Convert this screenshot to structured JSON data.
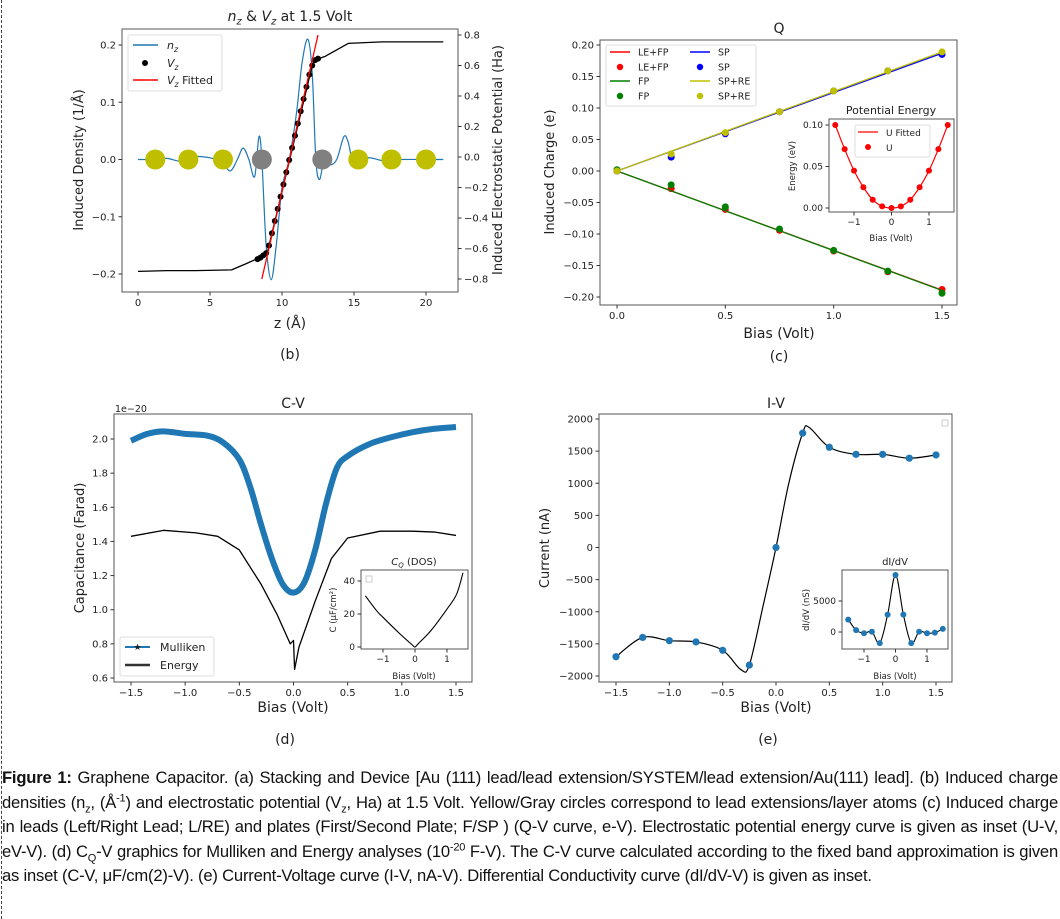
{
  "panel_labels": {
    "b": "(b)",
    "c": "(c)",
    "d": "(d)",
    "e": "(e)"
  },
  "chart_data": [
    {
      "panel": "b",
      "type": "line",
      "title_parts": [
        "n",
        "z",
        " & ",
        "V",
        "z",
        " at 1.5 Volt"
      ],
      "xlabel": "z (Å)",
      "ylabel": "Induced Density (1/Å)",
      "ylabel_right": "Induced Electrostatic Potential (Ha)",
      "xticks": [
        "0",
        "5",
        "10",
        "15",
        "20"
      ],
      "yticks": [
        "−0.2",
        "−0.1",
        "0.0",
        "0.1",
        "0.2"
      ],
      "yticks_right": [
        "−0.8",
        "−0.6",
        "−0.4",
        "−0.2",
        "0.0",
        "0.2",
        "0.4",
        "0.6",
        "0.8"
      ],
      "legend": [
        {
          "main": "n",
          "sub": "z",
          "rest": "",
          "color": "#1f77b4",
          "kind": "line"
        },
        {
          "main": "V",
          "sub": "z",
          "rest": "",
          "color": "#000000",
          "kind": "marker"
        },
        {
          "main": "V",
          "sub": "z",
          "rest": " Fitted",
          "color": "#ff0000",
          "kind": "line"
        }
      ],
      "n_z": [
        [
          0,
          0
        ],
        [
          1,
          0
        ],
        [
          2,
          0.002
        ],
        [
          3,
          -0.003
        ],
        [
          4,
          0.005
        ],
        [
          5,
          0.003
        ],
        [
          5.8,
          -0.004
        ],
        [
          6.4,
          -0.02
        ],
        [
          6.9,
          0
        ],
        [
          7.3,
          0.02
        ],
        [
          7.7,
          0
        ],
        [
          8.1,
          -0.03
        ],
        [
          8.4,
          0.04
        ],
        [
          8.6,
          0
        ],
        [
          8.9,
          -0.15
        ],
        [
          9.25,
          -0.21
        ],
        [
          9.6,
          -0.15
        ],
        [
          10.0,
          -0.05
        ],
        [
          10.5,
          0
        ],
        [
          11.0,
          0.08
        ],
        [
          11.4,
          0.17
        ],
        [
          11.8,
          0.21
        ],
        [
          12.1,
          0.15
        ],
        [
          12.35,
          0
        ],
        [
          12.6,
          -0.035
        ],
        [
          12.9,
          -0.005
        ],
        [
          13.3,
          -0.01
        ],
        [
          13.8,
          0
        ],
        [
          14.3,
          0.04
        ],
        [
          14.6,
          0.03
        ],
        [
          15.0,
          -0.005
        ],
        [
          16,
          0.003
        ],
        [
          17,
          -0.002
        ],
        [
          18,
          0
        ],
        [
          21.2,
          0
        ]
      ],
      "V_z_line": [
        [
          0,
          -0.75
        ],
        [
          2,
          -0.745
        ],
        [
          4,
          -0.745
        ],
        [
          6.5,
          -0.74
        ],
        [
          7.5,
          -0.7
        ],
        [
          8.2,
          -0.67
        ],
        [
          8.5,
          -0.66
        ],
        [
          9.0,
          -0.62
        ],
        [
          12.1,
          0.6
        ],
        [
          12.4,
          0.64
        ],
        [
          13,
          0.66
        ],
        [
          14.6,
          0.745
        ],
        [
          17,
          0.755
        ],
        [
          21.2,
          0.755
        ]
      ],
      "V_z_points": [
        [
          8.3,
          -0.67
        ],
        [
          8.5,
          -0.66
        ],
        [
          8.7,
          -0.645
        ],
        [
          8.9,
          -0.63
        ],
        [
          9.1,
          -0.58
        ],
        [
          9.3,
          -0.5
        ],
        [
          9.5,
          -0.42
        ],
        [
          9.7,
          -0.34
        ],
        [
          9.9,
          -0.26
        ],
        [
          10.1,
          -0.18
        ],
        [
          10.3,
          -0.1
        ],
        [
          10.5,
          -0.02
        ],
        [
          10.7,
          0.06
        ],
        [
          10.9,
          0.14
        ],
        [
          11.1,
          0.22
        ],
        [
          11.3,
          0.3
        ],
        [
          11.5,
          0.38
        ],
        [
          11.7,
          0.46
        ],
        [
          11.9,
          0.54
        ],
        [
          12.1,
          0.6
        ],
        [
          12.3,
          0.635
        ],
        [
          12.5,
          0.645
        ]
      ],
      "V_z_fitted": [
        [
          8.6,
          -0.8
        ],
        [
          12.5,
          0.8
        ]
      ],
      "atoms": [
        {
          "z": 1.2,
          "color": "#bfbf00"
        },
        {
          "z": 3.5,
          "color": "#bfbf00"
        },
        {
          "z": 5.9,
          "color": "#bfbf00"
        },
        {
          "z": 8.6,
          "color": "#808080"
        },
        {
          "z": 12.8,
          "color": "#808080"
        },
        {
          "z": 15.3,
          "color": "#bfbf00"
        },
        {
          "z": 17.6,
          "color": "#bfbf00"
        },
        {
          "z": 20.0,
          "color": "#bfbf00"
        }
      ]
    },
    {
      "panel": "c",
      "type": "line",
      "title": "Q",
      "xlabel": "Bias (Volt)",
      "ylabel": "Induced Charge (e)",
      "xticks": [
        "0.0",
        "0.5",
        "1.0",
        "1.5"
      ],
      "yticks": [
        "−0.20",
        "−0.15",
        "−0.10",
        "−0.05",
        "0.00",
        "0.05",
        "0.10",
        "0.15",
        "0.20"
      ],
      "x": [
        0,
        0.25,
        0.5,
        0.75,
        1.0,
        1.25,
        1.5
      ],
      "series": [
        {
          "name": "LE+FP",
          "color": "#ff0000",
          "values": [
            0,
            -0.028,
            -0.061,
            -0.094,
            -0.127,
            -0.16,
            -0.188
          ]
        },
        {
          "name": "FP",
          "color": "#008000",
          "values": [
            0.002,
            -0.022,
            -0.057,
            -0.092,
            -0.126,
            -0.159,
            -0.194
          ]
        },
        {
          "name": "SP",
          "color": "#0000ff",
          "values": [
            0,
            0.022,
            0.059,
            0.094,
            0.127,
            0.159,
            0.185
          ]
        },
        {
          "name": "SP+RE",
          "color": "#bfbf00",
          "values": [
            0,
            0.027,
            0.061,
            0.094,
            0.127,
            0.159,
            0.189
          ]
        }
      ],
      "legend": [
        "LE+FP",
        "LE+FP",
        "FP",
        "FP",
        "SP",
        "SP",
        "SP+RE",
        "SP+RE"
      ],
      "inset": {
        "title": "Potential Energy",
        "xlabel": "Bias (Volt)",
        "ylabel": "Energy (eV)",
        "xticks": [
          "−1",
          "0",
          "1"
        ],
        "yticks": [
          "0.00",
          "0.05",
          "0.10"
        ],
        "x": [
          -1.5,
          -1.25,
          -1.0,
          -0.75,
          -0.5,
          -0.25,
          0,
          0.25,
          0.5,
          0.75,
          1.0,
          1.25,
          1.5
        ],
        "U": [
          0.1,
          0.071,
          0.045,
          0.025,
          0.01,
          0.002,
          0,
          0.002,
          0.01,
          0.025,
          0.045,
          0.071,
          0.1
        ],
        "legend": [
          "U Fitted",
          "U"
        ],
        "color": "#ff0000"
      }
    },
    {
      "panel": "d",
      "type": "line",
      "title": "C-V",
      "offset_text": "1e−20",
      "xlabel": "Bias (Volt)",
      "ylabel": "Capacitance (Farad)",
      "xticks": [
        "−1.5",
        "−1.0",
        "−0.5",
        "0.0",
        "0.5",
        "1.0",
        "1.5"
      ],
      "yticks": [
        "0.6",
        "0.8",
        "1.0",
        "1.2",
        "1.4",
        "1.6",
        "1.8",
        "2.0"
      ],
      "series": [
        {
          "name": "Mulliken",
          "color": "#1f77b4",
          "points": [
            [
              -1.5,
              1.99
            ],
            [
              -1.35,
              2.03
            ],
            [
              -1.2,
              2.045
            ],
            [
              -1.0,
              2.03
            ],
            [
              -0.8,
              2.02
            ],
            [
              -0.65,
              1.98
            ],
            [
              -0.5,
              1.88
            ],
            [
              -0.4,
              1.72
            ],
            [
              -0.3,
              1.5
            ],
            [
              -0.2,
              1.3
            ],
            [
              -0.1,
              1.15
            ],
            [
              0,
              1.1
            ],
            [
              0.1,
              1.16
            ],
            [
              0.2,
              1.35
            ],
            [
              0.3,
              1.62
            ],
            [
              0.4,
              1.83
            ],
            [
              0.5,
              1.9
            ],
            [
              0.7,
              1.97
            ],
            [
              0.9,
              2.01
            ],
            [
              1.1,
              2.04
            ],
            [
              1.3,
              2.06
            ],
            [
              1.5,
              2.07
            ]
          ]
        },
        {
          "name": "Energy",
          "color": "#000000",
          "points": [
            [
              -1.5,
              1.43
            ],
            [
              -1.2,
              1.465
            ],
            [
              -0.9,
              1.45
            ],
            [
              -0.7,
              1.43
            ],
            [
              -0.5,
              1.35
            ],
            [
              -0.3,
              1.15
            ],
            [
              -0.15,
              0.97
            ],
            [
              -0.03,
              0.8
            ],
            [
              0,
              0.82
            ],
            [
              0.01,
              0.65
            ],
            [
              0.05,
              0.78
            ],
            [
              0.2,
              1.05
            ],
            [
              0.35,
              1.3
            ],
            [
              0.5,
              1.42
            ],
            [
              0.8,
              1.46
            ],
            [
              1.1,
              1.46
            ],
            [
              1.3,
              1.455
            ],
            [
              1.5,
              1.435
            ]
          ]
        }
      ],
      "inset": {
        "title_main": "C",
        "title_sub": "Q",
        "title_rest": " (DOS)",
        "xlabel": "Bias (Volt)",
        "ylabel": "C (μF/cm²)",
        "xticks": [
          "−1",
          "0",
          "1"
        ],
        "yticks": [
          "0",
          "20",
          "40"
        ],
        "points": [
          [
            -1.55,
            31
          ],
          [
            -1.2,
            22
          ],
          [
            -1,
            18
          ],
          [
            -0.5,
            8.5
          ],
          [
            -0.1,
            1.5
          ],
          [
            0,
            0
          ],
          [
            0.1,
            2
          ],
          [
            0.5,
            10
          ],
          [
            1,
            23
          ],
          [
            1.3,
            32
          ],
          [
            1.5,
            45
          ]
        ]
      }
    },
    {
      "panel": "e",
      "type": "line",
      "title": "I-V",
      "xlabel": "Bias (Volt)",
      "ylabel": "Current (nA)",
      "xticks": [
        "−1.5",
        "−1.0",
        "−0.5",
        "0.0",
        "0.5",
        "1.0",
        "1.5"
      ],
      "yticks": [
        "−2000",
        "−1500",
        "−1000",
        "−500",
        "0",
        "500",
        "1000",
        "1500",
        "2000"
      ],
      "x": [
        -1.5,
        -1.25,
        -1.0,
        -0.75,
        -0.5,
        -0.25,
        0,
        0.25,
        0.5,
        0.75,
        1.0,
        1.25,
        1.5
      ],
      "I": [
        -1700,
        -1400,
        -1450,
        -1470,
        -1600,
        -1830,
        0,
        1780,
        1560,
        1450,
        1450,
        1390,
        1440
      ],
      "curve": [
        [
          -1.5,
          -1700
        ],
        [
          -1.25,
          -1400
        ],
        [
          -1.0,
          -1450
        ],
        [
          -0.75,
          -1470
        ],
        [
          -0.5,
          -1600
        ],
        [
          -0.33,
          -1900
        ],
        [
          -0.25,
          -1830
        ],
        [
          -0.12,
          -900
        ],
        [
          0,
          0
        ],
        [
          0.12,
          1000
        ],
        [
          0.25,
          1780
        ],
        [
          0.31,
          1870
        ],
        [
          0.5,
          1560
        ],
        [
          0.75,
          1450
        ],
        [
          1.0,
          1450
        ],
        [
          1.25,
          1390
        ],
        [
          1.5,
          1440
        ]
      ],
      "color": "#1f77b4",
      "inset": {
        "title": "dI/dV",
        "xlabel": "Bias (Volt)",
        "ylabel": "dI/dV (nS)",
        "xticks": [
          "−1",
          "0",
          "1"
        ],
        "yticks": [
          "0",
          "5000"
        ],
        "x": [
          -1.5,
          -1.25,
          -1.0,
          -0.75,
          -0.5,
          -0.25,
          0,
          0.25,
          0.5,
          0.75,
          1.0,
          1.25,
          1.5
        ],
        "values": [
          2000,
          300,
          -200,
          50,
          -1800,
          2800,
          9200,
          2800,
          -1800,
          50,
          -200,
          -100,
          500
        ]
      }
    }
  ],
  "caption": [
    {
      "t": "Figure 1:",
      "s": "b"
    },
    {
      "t": " Graphene Capacitor. (a) Stacking and Device [Au (111) lead/lead extension/SYSTEM/lead extension/Au(111) lead]. (b) Induced charge densities (n",
      "s": ""
    },
    {
      "t": "z",
      "s": "sub"
    },
    {
      "t": ", (Å",
      "s": ""
    },
    {
      "t": "-1",
      "s": "sup"
    },
    {
      "t": ") and electrostatic potential (V",
      "s": ""
    },
    {
      "t": "z",
      "s": "sub"
    },
    {
      "t": ", Ha) at 1.5 Volt. Yellow/Gray circles correspond to lead extensions/layer atoms (c) Induced charge in leads (Left/Right Lead; L/RE) and plates (First/Second Plate; F/SP ) (Q-V curve, e-V). Electrostatic potential energy curve is given as inset (U-V, eV-V). (d) C",
      "s": ""
    },
    {
      "t": "Q",
      "s": "sub"
    },
    {
      "t": "-V graphics for Mulliken and Energy analyses (10",
      "s": ""
    },
    {
      "t": "-20",
      "s": "sup"
    },
    {
      "t": " F-V). The C-V curve calculated according to the fixed band approximation is given as inset (C-V, μF/cm(2)-V). (e) Current-Voltage curve (I-V, nA-V). Differential Conductivity curve (dI/dV-V) is given as inset.",
      "s": ""
    }
  ]
}
